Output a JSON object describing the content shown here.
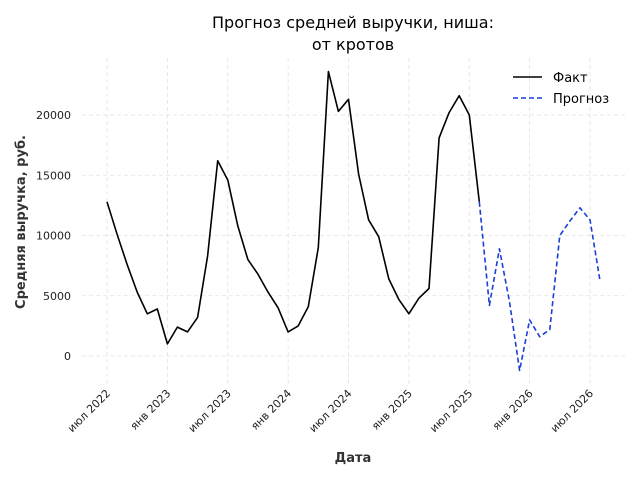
{
  "chart_data": {
    "type": "line",
    "title": [
      "Прогноз средней выручки, ниша:",
      "от кротов"
    ],
    "xlabel": "Дата",
    "ylabel": "Средняя выручка, руб.",
    "ylim": [
      -2500,
      24800
    ],
    "yticks": [
      0,
      5000,
      10000,
      15000,
      20000
    ],
    "grid": true,
    "legend_position": "top-right",
    "xticks": [
      {
        "date": "2022-07-01",
        "label": "июл 2022"
      },
      {
        "date": "2023-01-01",
        "label": "янв 2023"
      },
      {
        "date": "2023-07-01",
        "label": "июл 2023"
      },
      {
        "date": "2024-01-01",
        "label": "янв 2024"
      },
      {
        "date": "2024-07-01",
        "label": "июл 2024"
      },
      {
        "date": "2025-01-01",
        "label": "янв 2025"
      },
      {
        "date": "2025-07-01",
        "label": "июл 2025"
      },
      {
        "date": "2026-01-01",
        "label": "янв 2026"
      },
      {
        "date": "2026-07-01",
        "label": "июл 2026"
      }
    ],
    "series": [
      {
        "name": "Факт",
        "color": "#000000",
        "style": "solid",
        "x": [
          "2022-07-01",
          "2022-08-01",
          "2022-09-01",
          "2022-10-01",
          "2022-11-01",
          "2022-12-01",
          "2023-01-01",
          "2023-02-01",
          "2023-03-01",
          "2023-04-01",
          "2023-05-01",
          "2023-06-01",
          "2023-07-01",
          "2023-08-01",
          "2023-09-01",
          "2023-10-01",
          "2023-11-01",
          "2023-12-01",
          "2024-01-01",
          "2024-02-01",
          "2024-03-01",
          "2024-04-01",
          "2024-05-01",
          "2024-06-01",
          "2024-07-01",
          "2024-08-01",
          "2024-09-01",
          "2024-10-01",
          "2024-11-01",
          "2024-12-01",
          "2025-01-01",
          "2025-02-01",
          "2025-03-01",
          "2025-04-01",
          "2025-05-01",
          "2025-06-01",
          "2025-07-01",
          "2025-08-01"
        ],
        "y": [
          12800,
          10100,
          7600,
          5300,
          3500,
          3900,
          1000,
          2400,
          2000,
          3200,
          8300,
          16200,
          14600,
          10800,
          8000,
          6800,
          5300,
          4000,
          2000,
          2500,
          4100,
          9000,
          23600,
          20300,
          21300,
          15100,
          11300,
          9900,
          6400,
          4700,
          3500,
          4800,
          5600,
          18100,
          20200,
          21600,
          20000,
          12800
        ]
      },
      {
        "name": "Прогноз",
        "color": "#1a3fd6",
        "style": "dashed",
        "x": [
          "2025-08-01",
          "2025-09-01",
          "2025-10-01",
          "2025-11-01",
          "2025-12-01",
          "2026-01-01",
          "2026-02-01",
          "2026-03-01",
          "2026-04-01",
          "2026-05-01",
          "2026-06-01",
          "2026-07-01",
          "2026-08-01"
        ],
        "y": [
          12800,
          4200,
          8900,
          4500,
          -1200,
          3000,
          1600,
          2200,
          10000,
          11200,
          12300,
          11300,
          6200
        ]
      }
    ]
  }
}
